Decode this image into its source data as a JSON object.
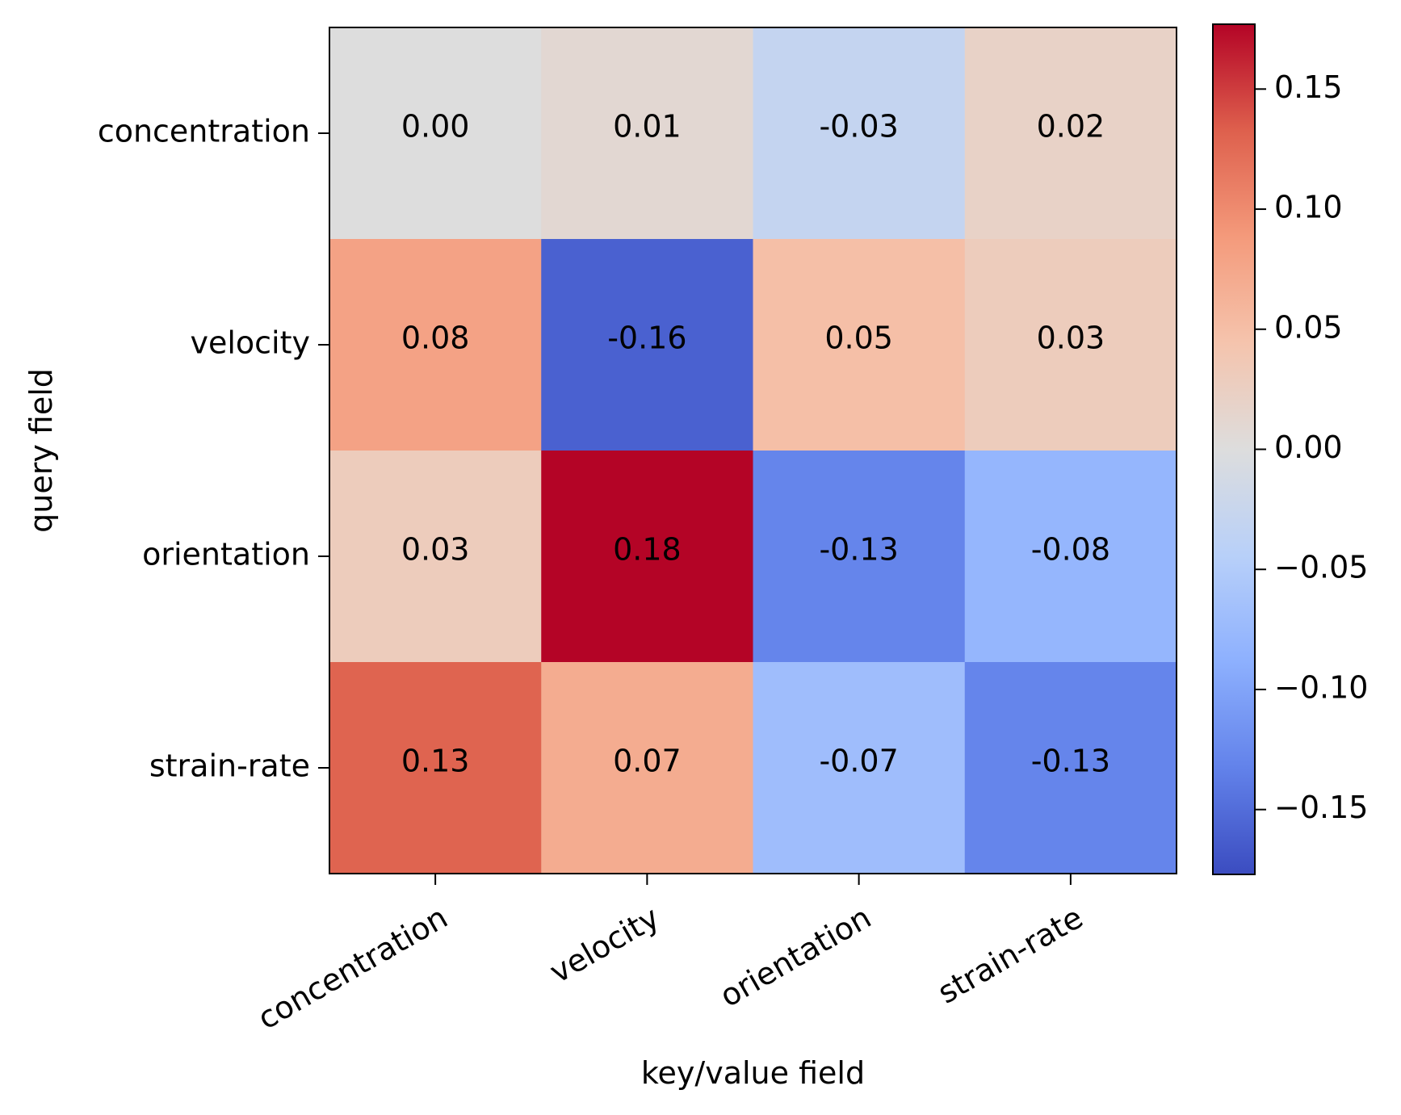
{
  "chart_data": {
    "type": "heatmap",
    "xlabel": "key/value field",
    "ylabel": "query field",
    "x_categories": [
      "concentration",
      "velocity",
      "orientation",
      "strain-rate"
    ],
    "y_categories": [
      "concentration",
      "velocity",
      "orientation",
      "strain-rate"
    ],
    "values": [
      [
        0.0,
        0.01,
        -0.03,
        0.02
      ],
      [
        0.08,
        -0.16,
        0.05,
        0.03
      ],
      [
        0.03,
        0.18,
        -0.13,
        -0.08
      ],
      [
        0.13,
        0.07,
        -0.07,
        -0.13
      ]
    ],
    "cell_labels": [
      [
        "0.00",
        "0.01",
        "-0.03",
        "0.02"
      ],
      [
        "0.08",
        "-0.16",
        "0.05",
        "0.03"
      ],
      [
        "0.03",
        "0.18",
        "-0.13",
        "-0.08"
      ],
      [
        "0.13",
        "0.07",
        "-0.07",
        "-0.13"
      ]
    ],
    "colormap": "coolwarm",
    "color_range": [
      -0.177,
      0.177
    ],
    "colorbar": {
      "ticks": [
        0.15,
        0.1,
        0.05,
        0.0,
        -0.05,
        -0.1,
        -0.15
      ],
      "tick_labels": [
        "0.15",
        "0.10",
        "0.05",
        "0.00",
        "−0.05",
        "−0.10",
        "−0.15"
      ]
    },
    "x_tick_rotation": "30 degrees",
    "grid": false
  }
}
